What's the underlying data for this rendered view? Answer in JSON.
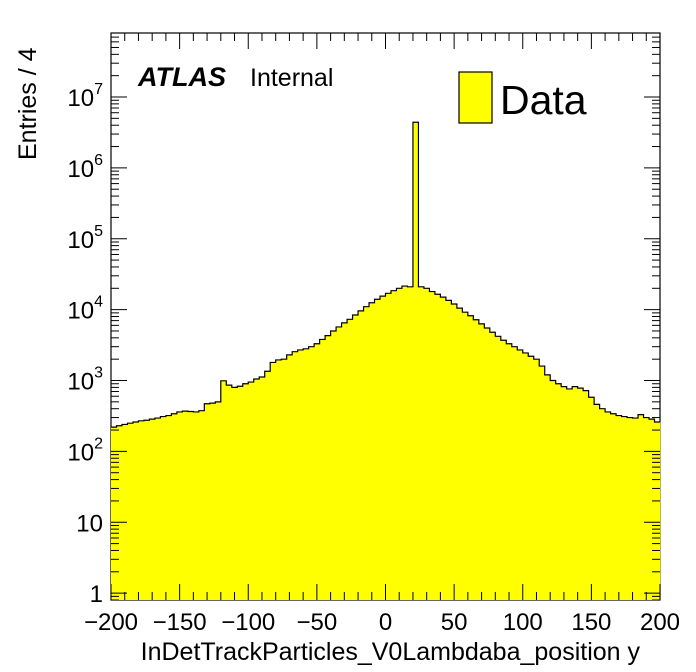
{
  "chart_data": {
    "type": "bar",
    "subtype": "histogram",
    "experiment": "ATLAS",
    "status": "Internal",
    "xlabel": "InDetTrackParticles_V0Lambdaba_position y",
    "ylabel": "Entries / 4",
    "xlim": [
      -200,
      200
    ],
    "ylim": [
      0.8,
      80000000
    ],
    "yscale": "log",
    "bin_width": 4,
    "fill_color": "#ffff00",
    "line_color": "#000000",
    "legend": {
      "placement": "top-right",
      "label": "Data"
    },
    "x_tick_labels": [
      "−200",
      "−150",
      "−100",
      "−50",
      "0",
      "50",
      "100",
      "150",
      "200"
    ],
    "x_ticks": [
      -200,
      -150,
      -100,
      -50,
      0,
      50,
      100,
      150,
      200
    ],
    "y_tick_labels": [
      {
        "value": 1,
        "base": "1",
        "exp": ""
      },
      {
        "value": 10,
        "base": "10",
        "exp": ""
      },
      {
        "value": 100,
        "base": "10",
        "exp": "2"
      },
      {
        "value": 1000,
        "base": "10",
        "exp": "3"
      },
      {
        "value": 10000,
        "base": "10",
        "exp": "4"
      },
      {
        "value": 100000,
        "base": "10",
        "exp": "5"
      },
      {
        "value": 1000000,
        "base": "10",
        "exp": "6"
      },
      {
        "value": 10000000,
        "base": "10",
        "exp": "7"
      }
    ],
    "bin_edges_start": -200,
    "values": [
      220,
      230,
      240,
      250,
      260,
      270,
      275,
      285,
      295,
      310,
      320,
      340,
      360,
      370,
      365,
      360,
      375,
      470,
      480,
      500,
      990,
      860,
      800,
      830,
      900,
      950,
      1050,
      1120,
      1350,
      1800,
      1950,
      2000,
      2300,
      2550,
      2700,
      2800,
      3000,
      3300,
      3800,
      4300,
      5000,
      5700,
      6500,
      7300,
      8400,
      9600,
      11000,
      12500,
      14000,
      15500,
      17000,
      18500,
      20000,
      21500,
      21000,
      4400000,
      21000,
      20000,
      18000,
      16500,
      15000,
      13500,
      12000,
      10500,
      9200,
      8200,
      7200,
      6300,
      5500,
      4800,
      4200,
      3700,
      3300,
      3000,
      2700,
      2450,
      2200,
      2000,
      1600,
      1200,
      1000,
      900,
      820,
      760,
      820,
      780,
      720,
      580,
      460,
      400,
      360,
      340,
      320,
      310,
      300,
      295,
      330,
      300,
      285,
      260
    ]
  }
}
